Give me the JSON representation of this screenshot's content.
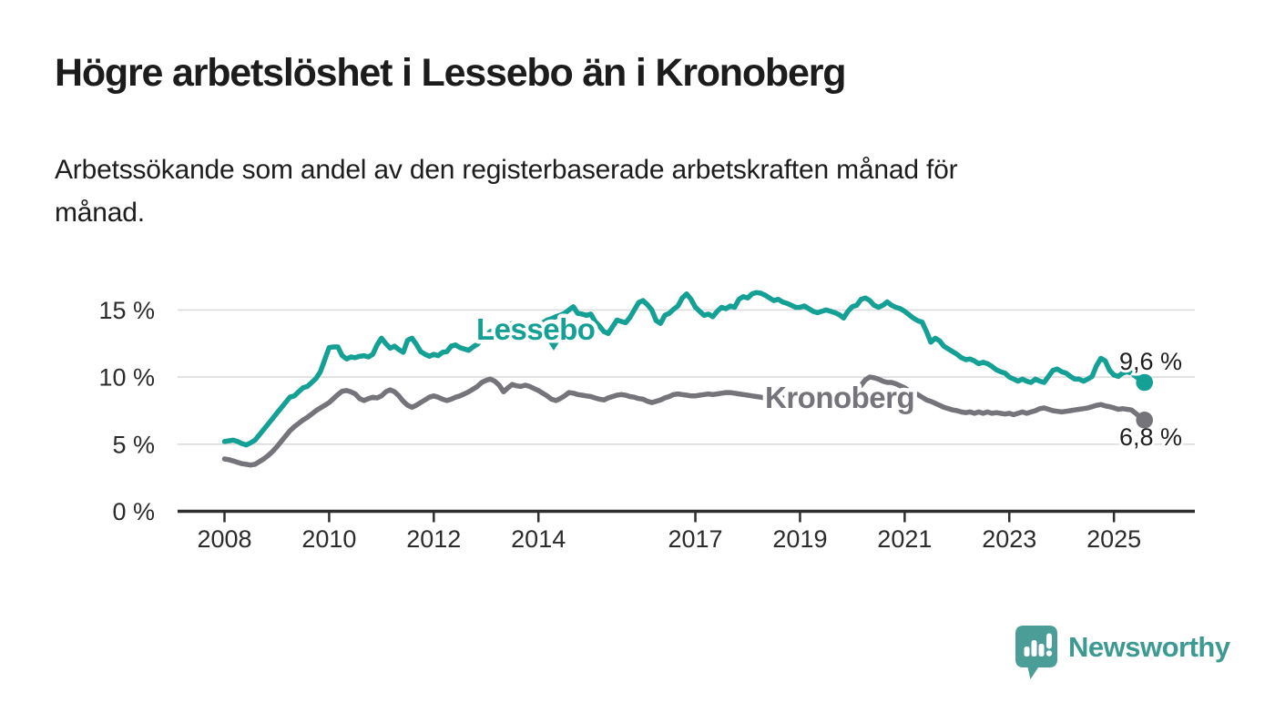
{
  "header": {
    "title": "Högre arbetslöshet i Lessebo än i Kronoberg",
    "subtitle_line1": "Arbetssökande som andel av den registerbaserade arbetskraften månad för",
    "subtitle_line2": "månad."
  },
  "footer": {
    "brand_name": "Newsworthy",
    "brand_color": "#3D9A93",
    "logo_icon": "newsworthy-speech-bubble-bar-chart-icon"
  },
  "chart_data": {
    "type": "line",
    "title": "Högre arbetslöshet i Lessebo än i Kronoberg",
    "xlabel": "",
    "ylabel": "",
    "x_unit": "month",
    "x_start": "2008-01",
    "x_end": "2025-08",
    "x_start_year": 2008,
    "x_tick_years": [
      2008,
      2010,
      2012,
      2014,
      2017,
      2019,
      2021,
      2023,
      2025
    ],
    "x_tick_labels": [
      "2008",
      "2010",
      "2012",
      "2014",
      "2017",
      "2019",
      "2021",
      "2023",
      "2025"
    ],
    "y_ticks": [
      0,
      5,
      10,
      15
    ],
    "y_tick_labels": [
      "0 %",
      "5 %",
      "10 %",
      "15 %"
    ],
    "ylim": [
      0,
      16.8
    ],
    "grid": "horizontal",
    "grid_color": "#dcdcdc",
    "axis_color": "#2e2e2e",
    "text_color": "#2b2b2b",
    "legend_position": "inline-labels",
    "series": [
      {
        "name": "Lessebo",
        "color": "#14A094",
        "end_value": 9.6,
        "end_label": "9,6 %",
        "values": [
          5.2,
          5.25,
          5.3,
          5.2,
          5.05,
          4.95,
          5.1,
          5.3,
          5.7,
          6.1,
          6.5,
          6.9,
          7.3,
          7.7,
          8.1,
          8.5,
          8.6,
          8.9,
          9.2,
          9.3,
          9.6,
          9.9,
          10.4,
          11.3,
          12.2,
          12.25,
          12.25,
          11.6,
          11.35,
          11.5,
          11.45,
          11.55,
          11.6,
          11.5,
          11.7,
          12.4,
          12.9,
          12.5,
          12.15,
          12.3,
          12.05,
          11.85,
          12.75,
          12.9,
          12.45,
          11.9,
          11.7,
          11.55,
          11.7,
          11.6,
          11.85,
          11.9,
          12.3,
          12.4,
          12.2,
          12.1,
          12.0,
          12.25,
          12.45,
          12.8,
          13.1,
          13.4,
          13.5,
          13.7,
          13.8,
          13.9,
          14.0,
          14.1,
          14.0,
          13.9,
          14.0,
          13.9,
          13.85,
          14.05,
          14.25,
          14.35,
          14.5,
          14.6,
          14.75,
          15.0,
          15.25,
          14.75,
          14.7,
          14.6,
          14.7,
          14.15,
          13.8,
          13.4,
          13.25,
          13.75,
          14.25,
          14.15,
          14.05,
          14.45,
          15.0,
          15.55,
          15.7,
          15.4,
          15.0,
          14.2,
          14.0,
          14.6,
          14.75,
          15.05,
          15.3,
          15.9,
          16.2,
          15.8,
          15.2,
          14.9,
          14.6,
          14.7,
          14.5,
          14.9,
          15.2,
          15.1,
          15.3,
          15.2,
          15.8,
          16.0,
          15.9,
          16.2,
          16.3,
          16.25,
          16.1,
          15.9,
          15.7,
          15.8,
          15.6,
          15.5,
          15.35,
          15.2,
          15.2,
          15.3,
          15.1,
          14.9,
          14.8,
          14.9,
          15.0,
          14.9,
          14.8,
          14.65,
          14.4,
          14.9,
          15.25,
          15.35,
          15.8,
          15.9,
          15.7,
          15.35,
          15.2,
          15.35,
          15.6,
          15.35,
          15.2,
          15.1,
          14.9,
          14.65,
          14.4,
          14.2,
          14.1,
          13.4,
          12.6,
          12.9,
          12.7,
          12.3,
          12.1,
          11.9,
          11.7,
          11.45,
          11.3,
          11.35,
          11.2,
          11.0,
          11.1,
          11.0,
          10.8,
          10.55,
          10.4,
          10.3,
          10.0,
          9.85,
          9.7,
          9.85,
          9.7,
          9.6,
          9.85,
          9.7,
          9.6,
          10.05,
          10.5,
          10.6,
          10.4,
          10.3,
          10.05,
          9.85,
          9.85,
          9.7,
          9.85,
          10.05,
          10.85,
          11.4,
          11.2,
          10.5,
          10.15,
          10.05,
          10.3,
          10.4,
          10.3,
          10.05,
          9.8,
          9.6
        ]
      },
      {
        "name": "Kronoberg",
        "color": "#76747B",
        "end_value": 6.8,
        "end_label": "6,8 %",
        "values": [
          3.9,
          3.85,
          3.75,
          3.65,
          3.55,
          3.5,
          3.45,
          3.5,
          3.7,
          3.9,
          4.15,
          4.45,
          4.8,
          5.2,
          5.6,
          6.0,
          6.3,
          6.55,
          6.8,
          7.0,
          7.25,
          7.5,
          7.7,
          7.9,
          8.1,
          8.4,
          8.7,
          8.95,
          9.0,
          8.9,
          8.75,
          8.4,
          8.25,
          8.4,
          8.5,
          8.45,
          8.6,
          8.9,
          9.05,
          8.9,
          8.6,
          8.2,
          7.9,
          7.75,
          7.9,
          8.1,
          8.3,
          8.5,
          8.6,
          8.5,
          8.35,
          8.25,
          8.35,
          8.5,
          8.6,
          8.75,
          8.9,
          9.1,
          9.3,
          9.6,
          9.75,
          9.85,
          9.7,
          9.4,
          8.9,
          9.2,
          9.45,
          9.35,
          9.3,
          9.4,
          9.3,
          9.15,
          9.0,
          8.8,
          8.6,
          8.35,
          8.25,
          8.4,
          8.6,
          8.85,
          8.8,
          8.7,
          8.65,
          8.6,
          8.55,
          8.45,
          8.35,
          8.3,
          8.45,
          8.55,
          8.65,
          8.7,
          8.65,
          8.55,
          8.5,
          8.4,
          8.35,
          8.2,
          8.1,
          8.2,
          8.3,
          8.45,
          8.55,
          8.7,
          8.75,
          8.7,
          8.65,
          8.6,
          8.6,
          8.65,
          8.7,
          8.75,
          8.7,
          8.75,
          8.8,
          8.85,
          8.85,
          8.8,
          8.75,
          8.7,
          8.65,
          8.6,
          8.55,
          8.5,
          8.45,
          8.4,
          8.45,
          8.5,
          8.45,
          8.4,
          8.45,
          8.5,
          8.5,
          8.55,
          8.5,
          8.45,
          8.5,
          8.55,
          8.6,
          8.6,
          8.65,
          8.7,
          8.75,
          8.8,
          8.9,
          9.0,
          9.4,
          9.8,
          10.0,
          9.95,
          9.85,
          9.7,
          9.6,
          9.6,
          9.5,
          9.35,
          9.2,
          9.0,
          8.85,
          8.7,
          8.5,
          8.3,
          8.2,
          8.05,
          7.9,
          7.75,
          7.65,
          7.55,
          7.5,
          7.4,
          7.35,
          7.4,
          7.3,
          7.4,
          7.3,
          7.4,
          7.3,
          7.35,
          7.3,
          7.25,
          7.3,
          7.2,
          7.3,
          7.4,
          7.3,
          7.4,
          7.5,
          7.65,
          7.7,
          7.6,
          7.5,
          7.45,
          7.4,
          7.45,
          7.5,
          7.55,
          7.6,
          7.65,
          7.7,
          7.8,
          7.9,
          7.95,
          7.85,
          7.8,
          7.7,
          7.6,
          7.65,
          7.6,
          7.55,
          7.3,
          7.0,
          6.8
        ]
      }
    ],
    "annotations": {
      "lessebo_series_label": {
        "text": "Lessebo",
        "marker": "triangle-down"
      },
      "kronoberg_series_label": {
        "text": "Kronoberg"
      }
    }
  }
}
